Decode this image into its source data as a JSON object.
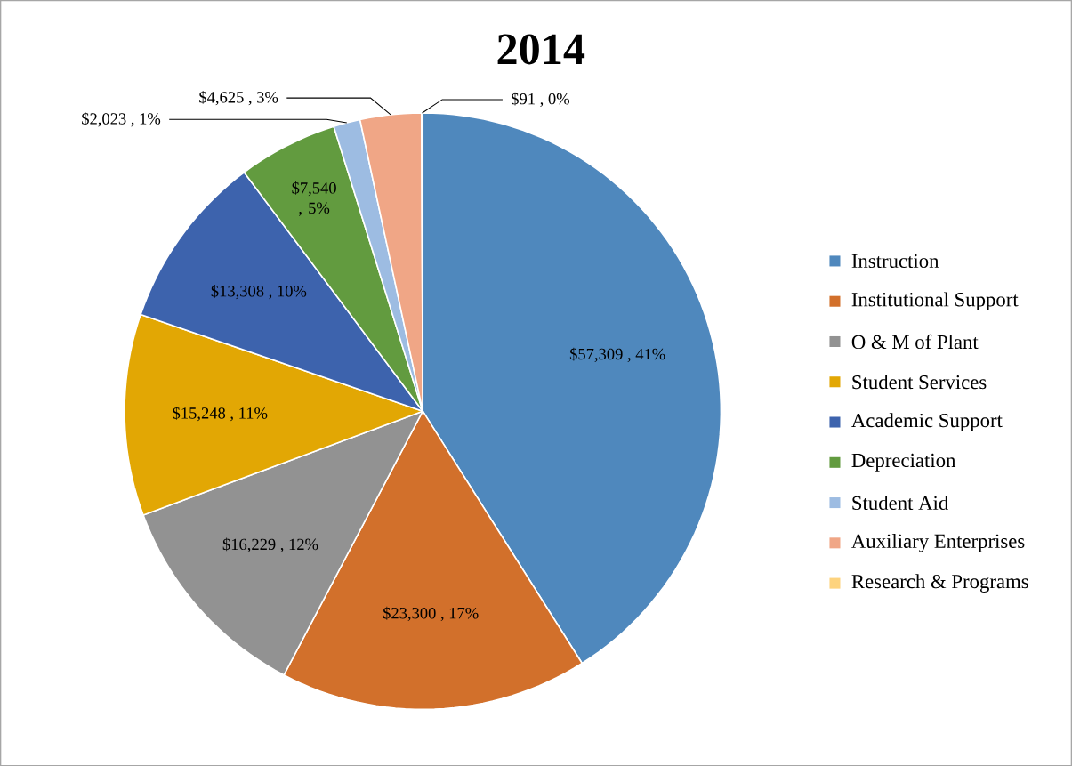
{
  "chart_data": {
    "type": "pie",
    "title": "2014",
    "categories": [
      "Instruction",
      "Institutional Support",
      "O & M of Plant",
      "Student Services",
      "Academic Support",
      "Depreciation",
      "Student Aid",
      "Auxiliary Enterprises",
      "Research & Programs"
    ],
    "values": [
      57309,
      23300,
      16229,
      15248,
      13308,
      7540,
      2023,
      4625,
      91
    ],
    "colors": [
      "#4f88bd",
      "#d2702b",
      "#929292",
      "#e2a704",
      "#3d63ad",
      "#629b3f",
      "#9dbce2",
      "#f0a686",
      "#fdd37e"
    ],
    "value_labels": [
      "$57,309 , 41%",
      "$23,300 , 17%",
      "$16,229 , 12%",
      "$15,248 , 11%",
      "$13,308 , 10%",
      "$7,540 , 5%",
      "$2,023 , 1%",
      "$4,625 , 3%",
      "$91 , 0%"
    ],
    "legend": "right"
  }
}
